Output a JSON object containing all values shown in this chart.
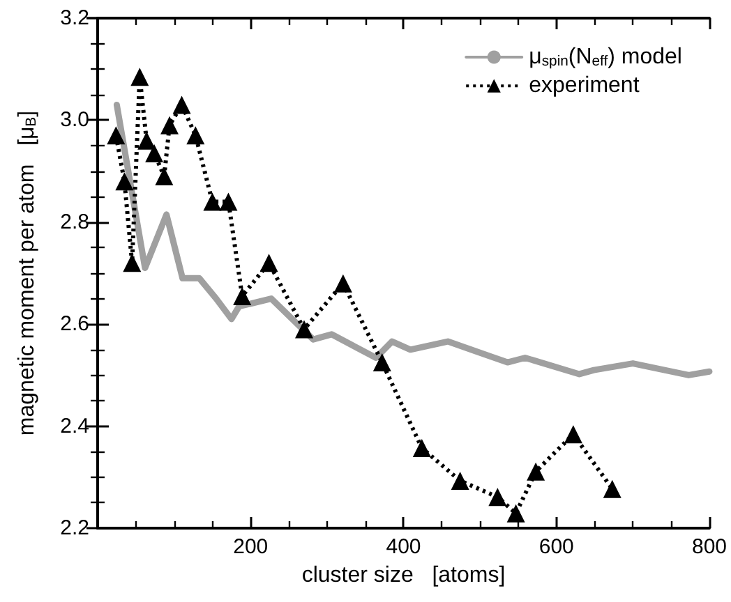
{
  "chart_data": {
    "type": "line",
    "xlabel": "cluster size   [atoms]",
    "ylabel": "magnetic moment per atom   [μ$_{B}$]",
    "xlim": [
      0,
      800
    ],
    "xticks": [
      {
        "value": 0,
        "label": null
      },
      200,
      400,
      600,
      800
    ],
    "ylim": [
      2.2,
      3.2
    ],
    "yticks": [
      2.2,
      2.4,
      2.6,
      2.8,
      {
        "value": 3.0,
        "label": "3.0"
      },
      3.2
    ],
    "legend": "top right",
    "grid": false,
    "series": [
      {
        "name": "μ$_{spin}$(N$_{eff}$) model",
        "color": "#a0a0a0",
        "marker": "none",
        "line_style": "solid",
        "x": [
          25,
          62,
          90,
          111,
          133,
          155,
          175,
          185,
          200,
          227,
          282,
          306,
          364,
          385,
          409,
          458,
          536,
          559,
          630,
          649,
          700,
          773,
          800
        ],
        "values": [
          3.03,
          2.71,
          2.815,
          2.69,
          2.69,
          2.65,
          2.61,
          2.635,
          2.64,
          2.65,
          2.57,
          2.58,
          2.534,
          2.566,
          2.55,
          2.566,
          2.525,
          2.534,
          2.502,
          2.51,
          2.523,
          2.5,
          2.507
        ]
      },
      {
        "name": "experiment",
        "color": "#000000",
        "marker": "triangle",
        "line_style": "dotted",
        "x": [
          24,
          35,
          45,
          55,
          64,
          74,
          87,
          94,
          110,
          128,
          150,
          171,
          189,
          224,
          270,
          321,
          372,
          424,
          474,
          523,
          547,
          573,
          622,
          673
        ],
        "values": [
          2.97,
          2.88,
          2.72,
          3.085,
          2.96,
          2.935,
          2.89,
          2.99,
          3.03,
          2.97,
          2.84,
          2.84,
          2.655,
          2.72,
          2.59,
          2.68,
          2.525,
          2.357,
          2.293,
          2.261,
          2.229,
          2.311,
          2.384,
          2.277
        ]
      }
    ]
  }
}
